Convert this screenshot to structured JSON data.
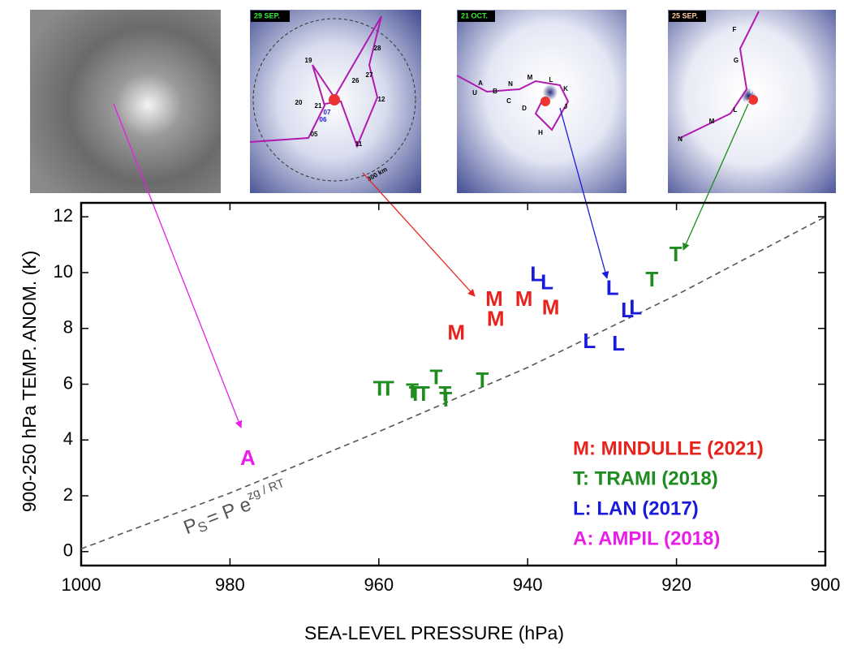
{
  "chart_data": {
    "type": "scatter",
    "xlabel": "SEA-LEVEL PRESSURE (hPa)",
    "ylabel": "900-250 hPa TEMP. ANOM. (K)",
    "xlim": [
      1000,
      900
    ],
    "ylim": [
      -0.5,
      12.5
    ],
    "xticks": [
      1000,
      980,
      960,
      940,
      920,
      900
    ],
    "yticks": [
      0,
      2,
      4,
      6,
      8,
      10,
      12
    ],
    "legend": "lower right",
    "series": [
      {
        "name": "M: MINDULLE (2021)",
        "marker": "M",
        "color": "#e8221c",
        "x": [
          949.6,
          944.5,
          944.3,
          940.5,
          936.9
        ],
        "values": [
          7.8,
          9.0,
          8.3,
          9.0,
          8.7
        ]
      },
      {
        "name": "T: TRAMI (2018)",
        "marker": "T",
        "color": "#1e8c1e",
        "x": [
          959.9,
          958.8,
          955.5,
          955.1,
          954.0,
          952.3,
          951.1,
          951.0,
          946.1,
          923.3,
          920.1
        ],
        "values": [
          5.8,
          5.8,
          5.7,
          5.6,
          5.6,
          6.2,
          5.6,
          5.4,
          6.1,
          9.7,
          10.6
        ]
      },
      {
        "name": "L: LAN (2017)",
        "marker": "L",
        "color": "#1a1adc",
        "x": [
          938.8,
          937.4,
          928.6,
          931.7,
          927.8,
          926.6,
          925.5
        ],
        "values": [
          9.9,
          9.6,
          9.4,
          7.5,
          7.4,
          8.6,
          8.7
        ]
      },
      {
        "name": "A: AMPIL (2018)",
        "marker": "A",
        "color": "#e81ee8",
        "x": [
          977.6
        ],
        "values": [
          3.3
        ]
      }
    ],
    "curve": {
      "color": "#555555",
      "dashed": true,
      "x": [
        1000,
        980,
        960,
        940,
        920,
        900
      ],
      "values": [
        0.1,
        2.1,
        4.3,
        6.6,
        9.2,
        12.0
      ]
    },
    "formula": {
      "base": "P",
      "sub": "S",
      "mid": "= P e",
      "sup": "zg / RT"
    }
  },
  "images": [
    {},
    {
      "date": "29 SEP.",
      "track_labels": [
        "19",
        "28",
        "27",
        "26",
        "12",
        "20",
        "21",
        "05",
        "11",
        "06",
        "07",
        "300 km"
      ]
    },
    {
      "date": "21 OCT.",
      "track_labels": [
        "A",
        "U",
        "B",
        "N",
        "M",
        "L",
        "K",
        "C",
        "D",
        "J",
        "H"
      ]
    },
    {
      "date": "25 SEP.",
      "track_labels": [
        "F",
        "G",
        "M",
        "L",
        "N",
        "K",
        "H"
      ]
    }
  ]
}
